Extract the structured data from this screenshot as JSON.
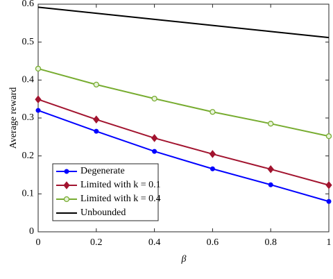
{
  "chart_data": {
    "type": "line",
    "xlabel": "β",
    "ylabel": "Average reward",
    "x": [
      0,
      0.2,
      0.4,
      0.6,
      0.8,
      1
    ],
    "xlim": [
      0,
      1
    ],
    "xticks": [
      0,
      0.2,
      0.4,
      0.6,
      0.8,
      1
    ],
    "ylim": [
      0,
      0.6
    ],
    "yticks": [
      0,
      0.1,
      0.2,
      0.3,
      0.4,
      0.5,
      0.6
    ],
    "legend": "lower-left",
    "series": [
      {
        "name": "Degenerate",
        "color": "#0000ff",
        "marker": "filled-circle",
        "values": [
          0.32,
          0.265,
          0.212,
          0.166,
          0.124,
          0.08
        ]
      },
      {
        "name": "Limited with k = 0.1",
        "color": "#a2142f",
        "marker": "diamond",
        "values": [
          0.349,
          0.296,
          0.247,
          0.205,
          0.165,
          0.123
        ]
      },
      {
        "name": "Limited with k = 0.4",
        "color": "#77ac30",
        "marker": "circle",
        "values": [
          0.43,
          0.388,
          0.351,
          0.316,
          0.285,
          0.252
        ]
      },
      {
        "name": "Unbounded",
        "color": "#000000",
        "marker": null,
        "values": [
          0.592,
          0.576,
          0.56,
          0.544,
          0.528,
          0.512
        ]
      }
    ]
  }
}
